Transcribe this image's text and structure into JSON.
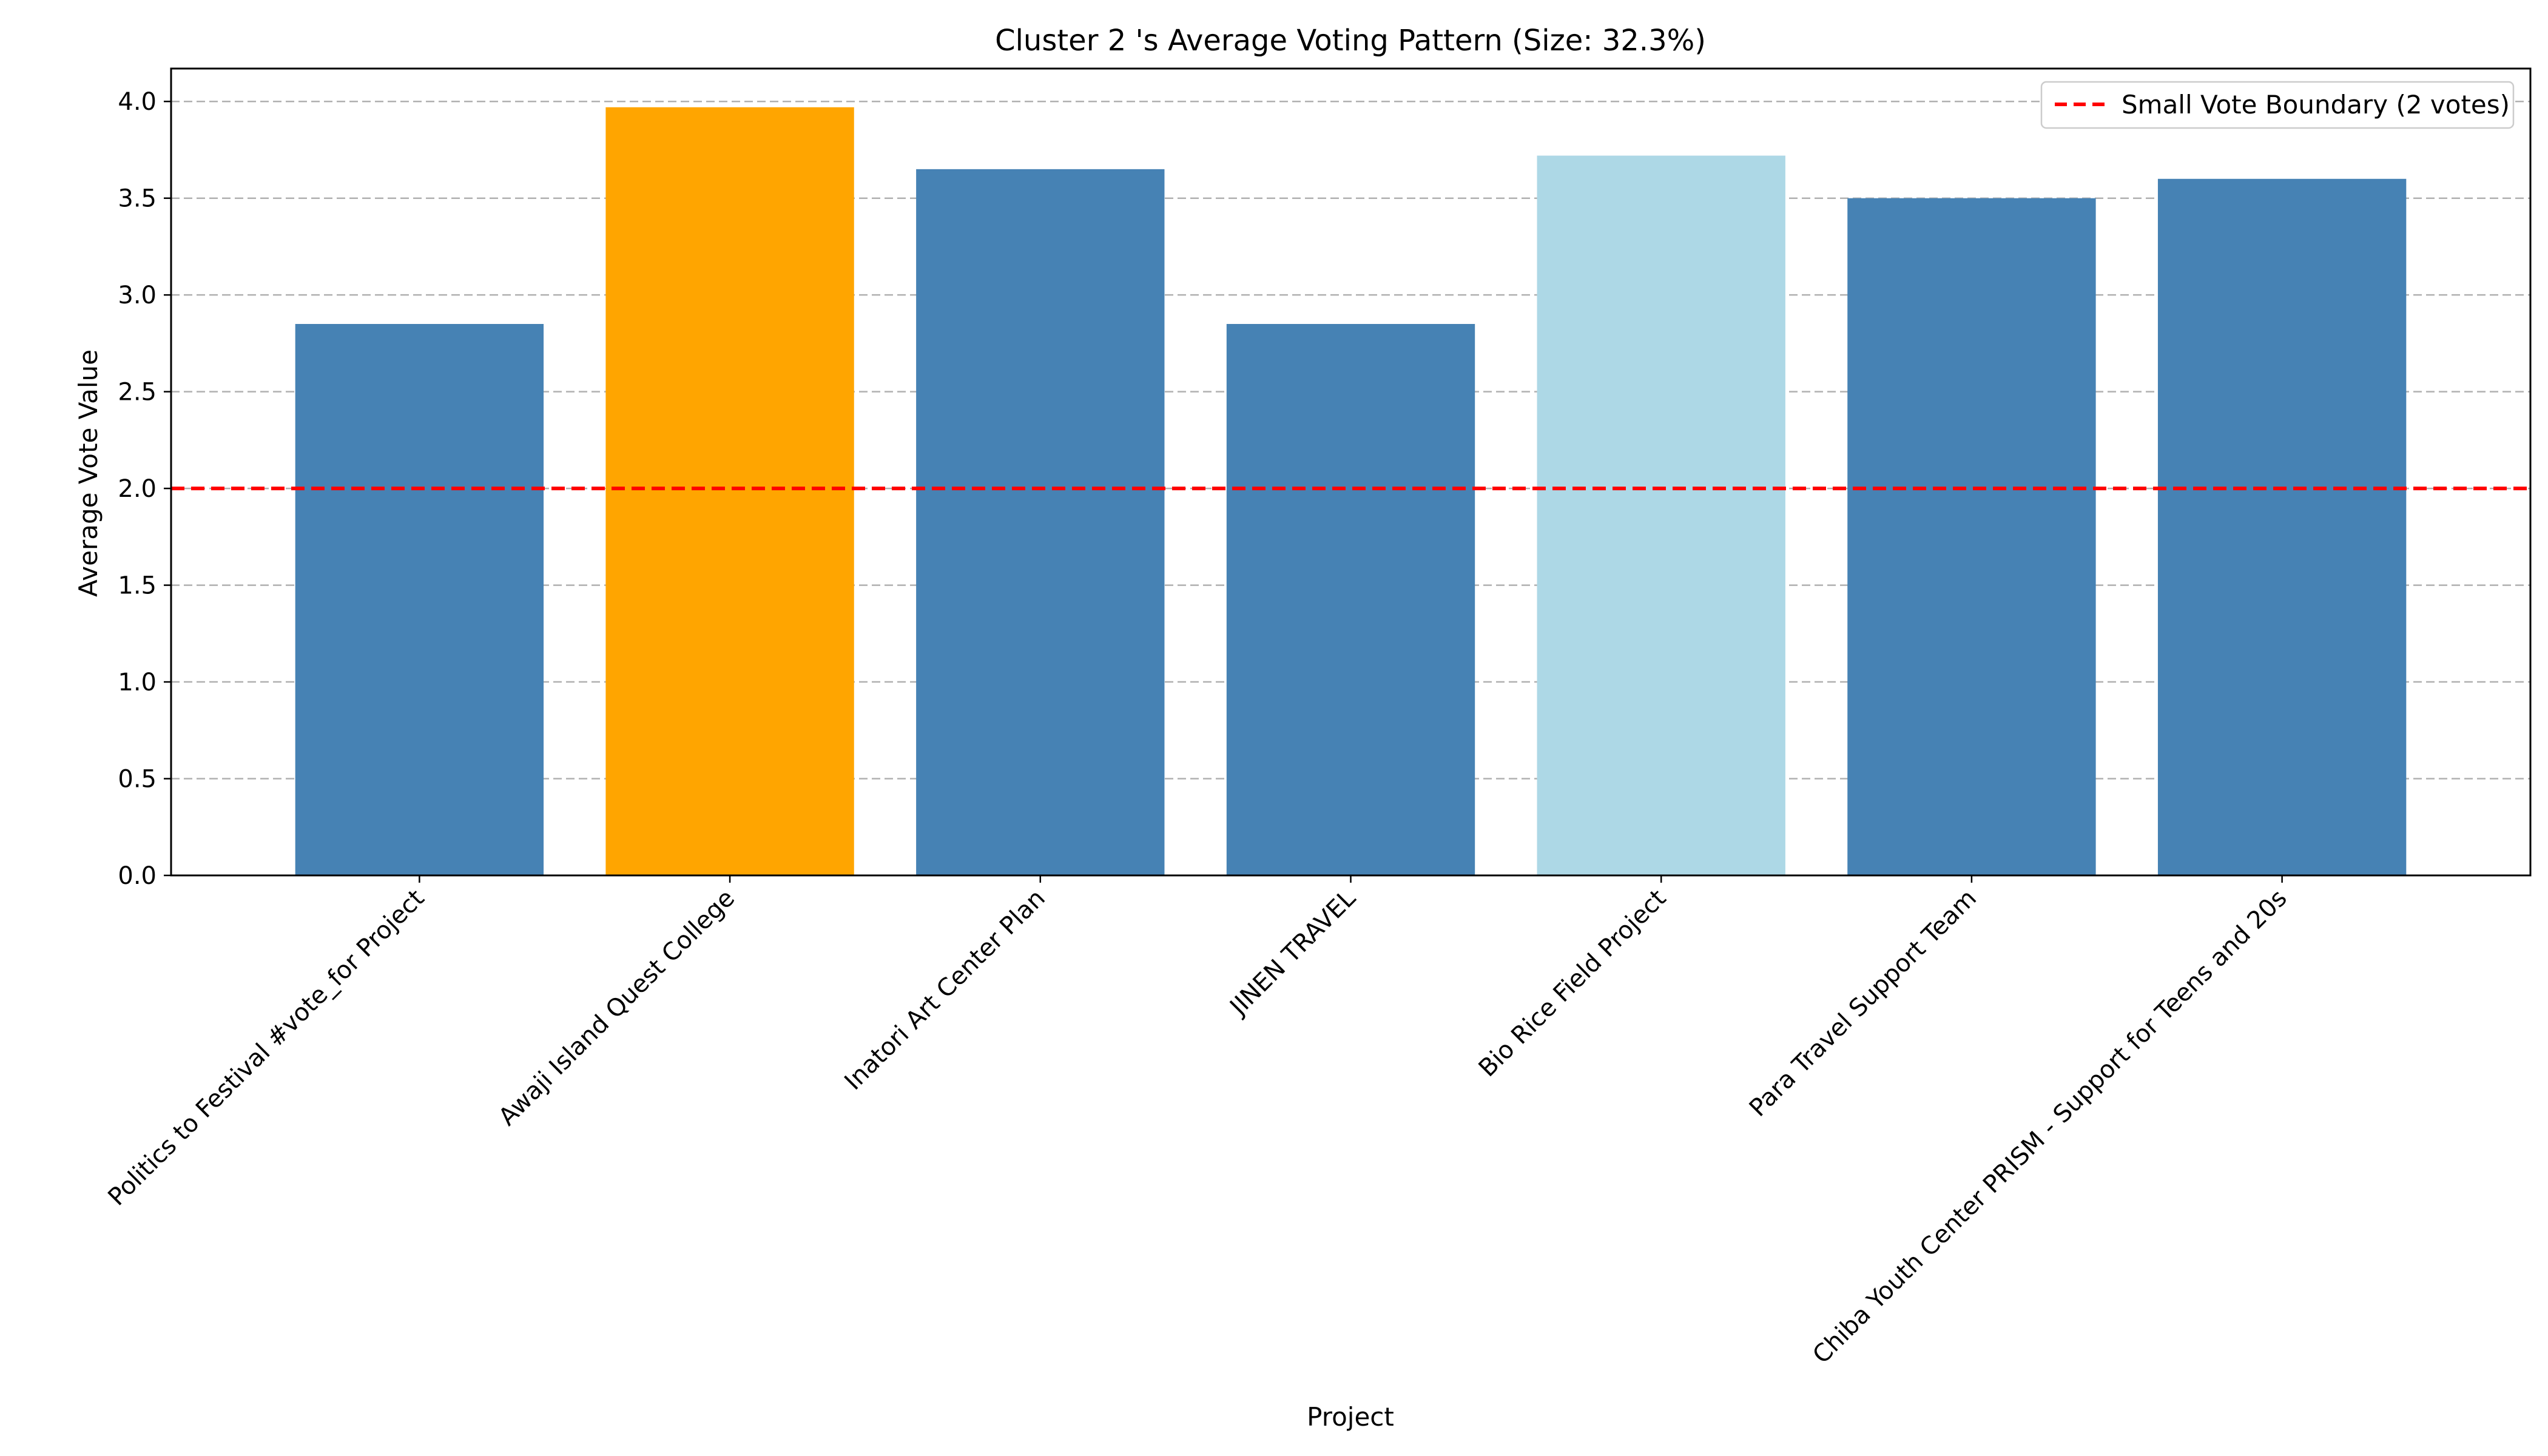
{
  "chart_data": {
    "type": "bar",
    "title": "Cluster 2 's Average Voting Pattern (Size: 32.3%)",
    "xlabel": "Project",
    "ylabel": "Average Vote Value",
    "categories": [
      "Politics to Festival #vote_for Project",
      "Awaji Island Quest College",
      "Inatori Art Center Plan",
      "JINEN TRAVEL",
      "Bio Rice Field Project",
      "Para Travel Support Team",
      "Chiba Youth Center PRISM - Support for Teens and 20s"
    ],
    "values": [
      2.85,
      3.97,
      3.65,
      2.85,
      3.72,
      3.5,
      3.6
    ],
    "bar_colors": [
      "#4682b4",
      "#ffa500",
      "#4682b4",
      "#4682b4",
      "#add8e6",
      "#4682b4",
      "#4682b4"
    ],
    "ylim": [
      0,
      4.17
    ],
    "yticks": [
      0.0,
      0.5,
      1.0,
      1.5,
      2.0,
      2.5,
      3.0,
      3.5,
      4.0
    ],
    "grid": "y, dashed",
    "reference_line": {
      "y": 2,
      "label": "Small Vote Boundary (2 votes)",
      "color": "#ff0000",
      "style": "dashed"
    },
    "legend": "top-right"
  }
}
